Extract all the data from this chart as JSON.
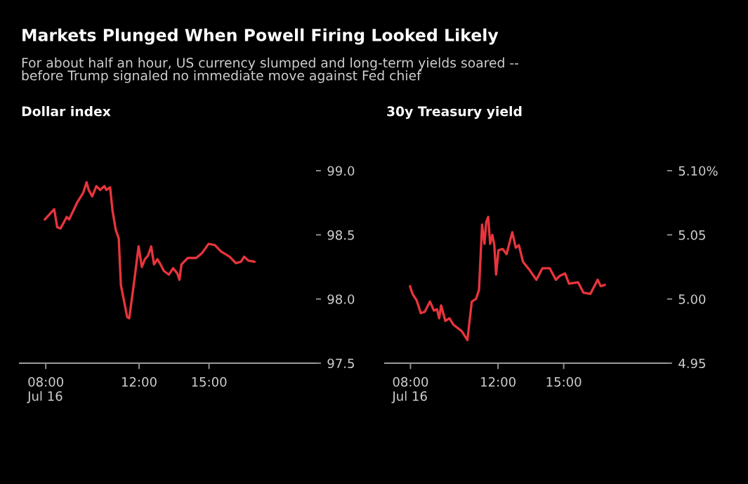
{
  "chart_data": [
    {
      "type": "other",
      "title": "Markets Plunged When Powell Firing Looked Likely",
      "subtitle": "For about half an hour, US currency slumped and long-term yields soared --\nbefore Trump signaled no immediate move against Fed chief"
    },
    {
      "type": "line",
      "title": "Dollar index",
      "xlim": [
        6.88,
        19.59
      ],
      "xticks": [
        {
          "value": 8,
          "label": "08:00\nJul 16"
        },
        {
          "value": 12,
          "label": "12:00"
        },
        {
          "value": 15,
          "label": "15:00"
        }
      ],
      "ylim": [
        97.5,
        99.0
      ],
      "yticks": [
        {
          "value": 97.5,
          "label": "97.5"
        },
        {
          "value": 98.0,
          "label": "98.0"
        },
        {
          "value": 98.5,
          "label": "98.5"
        },
        {
          "value": 99.0,
          "label": "99.0"
        }
      ],
      "series": [
        {
          "color": "#e8343c",
          "x": [
            7.96,
            8.36,
            8.49,
            8.63,
            8.9,
            9.0,
            9.34,
            9.61,
            9.75,
            9.84,
            9.99,
            10.17,
            10.33,
            10.51,
            10.6,
            10.76,
            10.86,
            11.0,
            11.13,
            11.22,
            11.49,
            11.58,
            11.8,
            11.98,
            12.12,
            12.25,
            12.39,
            12.52,
            12.64,
            12.79,
            12.92,
            13.06,
            13.28,
            13.46,
            13.64,
            13.73,
            13.82,
            14.09,
            14.45,
            14.71,
            14.98,
            15.25,
            15.52,
            15.88,
            16.15,
            16.37,
            16.51,
            16.68,
            16.95
          ],
          "values": [
            98.62,
            98.7,
            98.56,
            98.55,
            98.64,
            98.62,
            98.75,
            98.83,
            98.91,
            98.85,
            98.8,
            98.88,
            98.85,
            98.88,
            98.85,
            98.87,
            98.69,
            98.54,
            98.47,
            98.11,
            97.86,
            97.85,
            98.15,
            98.41,
            98.25,
            98.31,
            98.34,
            98.41,
            98.27,
            98.31,
            98.27,
            98.22,
            98.19,
            98.24,
            98.2,
            98.15,
            98.27,
            98.32,
            98.32,
            98.36,
            98.43,
            98.42,
            98.37,
            98.33,
            98.28,
            98.29,
            98.33,
            98.3,
            98.29
          ]
        }
      ]
    },
    {
      "type": "line",
      "title": "30y Treasury yield",
      "xlim": [
        6.83,
        19.73
      ],
      "xticks": [
        {
          "value": 8,
          "label": "08:00\nJul 16"
        },
        {
          "value": 12,
          "label": "12:00"
        },
        {
          "value": 15,
          "label": "15:00"
        }
      ],
      "ylim": [
        4.95,
        5.1
      ],
      "yticks": [
        {
          "value": 4.95,
          "label": "4.95"
        },
        {
          "value": 5.0,
          "label": "5.00"
        },
        {
          "value": 5.05,
          "label": "5.05"
        },
        {
          "value": 5.1,
          "label": "5.10%"
        }
      ],
      "series": [
        {
          "color": "#e8343c",
          "x": [
            7.98,
            8.09,
            8.28,
            8.47,
            8.65,
            8.89,
            9.07,
            9.21,
            9.31,
            9.4,
            9.59,
            9.78,
            9.96,
            10.34,
            10.6,
            10.8,
            10.99,
            11.13,
            11.27,
            11.38,
            11.46,
            11.55,
            11.64,
            11.74,
            11.83,
            11.91,
            12.02,
            12.21,
            12.39,
            12.65,
            12.81,
            12.95,
            13.14,
            13.42,
            13.75,
            14.03,
            14.36,
            14.64,
            14.82,
            15.06,
            15.24,
            15.66,
            15.9,
            16.22,
            16.55,
            16.69,
            16.88
          ],
          "values": [
            5.01,
            5.004,
            4.999,
            4.989,
            4.99,
            4.998,
            4.991,
            4.992,
            4.985,
            4.995,
            4.983,
            4.985,
            4.98,
            4.975,
            4.968,
            4.998,
            5.0,
            5.007,
            5.058,
            5.043,
            5.06,
            5.064,
            5.043,
            5.05,
            5.042,
            5.019,
            5.038,
            5.039,
            5.035,
            5.052,
            5.04,
            5.042,
            5.029,
            5.023,
            5.015,
            5.024,
            5.024,
            5.015,
            5.018,
            5.02,
            5.012,
            5.013,
            5.005,
            5.004,
            5.015,
            5.01,
            5.011
          ]
        }
      ]
    }
  ]
}
